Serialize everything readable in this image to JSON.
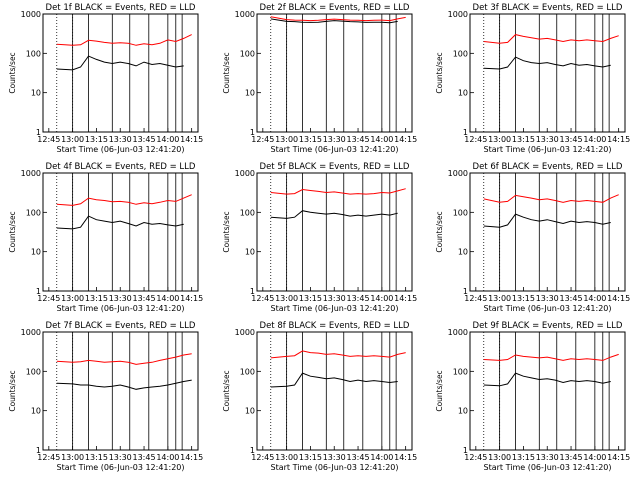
{
  "figure": {
    "tick_x_labels": [
      "12:45",
      "13:00",
      "13:15",
      "13:30",
      "13:45",
      "14:00",
      "14:15"
    ],
    "tick_y_labels": [
      "1",
      "10",
      "100",
      "1000"
    ],
    "colors": {
      "events": "#000000",
      "lld": "#ff0000",
      "axis": "#000000"
    }
  },
  "chart_data": [
    {
      "type": "line",
      "title": "Det 1f BLACK = Events, RED = LLD",
      "xlabel": "Start Time (06-Jun-03 12:41:20)",
      "ylabel": "Counts/sec",
      "ylim": [
        1,
        1000
      ],
      "yscale": "log",
      "xlim": [
        "12:41:20",
        "14:19:00"
      ],
      "x": [
        "12:50",
        "13:00",
        "13:05",
        "13:10",
        "13:15",
        "13:20",
        "13:25",
        "13:30",
        "13:35",
        "13:40",
        "13:45",
        "13:50",
        "13:55",
        "14:00",
        "14:05",
        "14:10",
        "14:15"
      ],
      "series": [
        {
          "name": "BLACK = Events",
          "color": "#000000",
          "values": [
            40,
            38,
            45,
            85,
            70,
            60,
            55,
            60,
            55,
            48,
            60,
            52,
            55,
            50,
            45,
            48,
            null
          ]
        },
        {
          "name": "RED = LLD",
          "color": "#ff0000",
          "values": [
            170,
            160,
            165,
            215,
            205,
            190,
            180,
            185,
            180,
            160,
            175,
            165,
            180,
            220,
            200,
            240,
            300
          ]
        }
      ]
    },
    {
      "type": "line",
      "title": "Det 2f BLACK = Events, RED = LLD",
      "xlabel": "Start Time (06-Jun-03 12:41:20)",
      "ylabel": "Counts/sec",
      "ylim": [
        1,
        1000
      ],
      "yscale": "log",
      "xlim": [
        "12:41:20",
        "14:19:00"
      ],
      "x": [
        "12:50",
        "13:00",
        "13:05",
        "13:10",
        "13:15",
        "13:20",
        "13:25",
        "13:30",
        "13:35",
        "13:40",
        "13:45",
        "13:50",
        "13:55",
        "14:00",
        "14:05",
        "14:10",
        "14:15"
      ],
      "series": [
        {
          "name": "BLACK = Events",
          "color": "#000000",
          "values": [
            750,
            650,
            640,
            620,
            610,
            620,
            650,
            680,
            660,
            640,
            630,
            610,
            620,
            620,
            600,
            650,
            null
          ]
        },
        {
          "name": "RED = LLD",
          "color": "#ff0000",
          "values": [
            850,
            720,
            700,
            690,
            680,
            690,
            720,
            740,
            720,
            700,
            690,
            680,
            690,
            700,
            680,
            750,
            820
          ]
        }
      ]
    },
    {
      "type": "line",
      "title": "Det 3f BLACK = Events, RED = LLD",
      "xlabel": "Start Time (06-Jun-03 12:41:20)",
      "ylabel": "Counts/sec",
      "ylim": [
        1,
        1000
      ],
      "yscale": "log",
      "xlim": [
        "12:41:20",
        "14:19:00"
      ],
      "x": [
        "12:50",
        "13:00",
        "13:05",
        "13:10",
        "13:15",
        "13:20",
        "13:25",
        "13:30",
        "13:35",
        "13:40",
        "13:45",
        "13:50",
        "13:55",
        "14:00",
        "14:05",
        "14:10",
        "14:15"
      ],
      "series": [
        {
          "name": "BLACK = Events",
          "color": "#000000",
          "values": [
            42,
            40,
            45,
            80,
            65,
            58,
            55,
            58,
            52,
            48,
            55,
            50,
            52,
            48,
            45,
            50,
            null
          ]
        },
        {
          "name": "RED = LLD",
          "color": "#ff0000",
          "values": [
            200,
            180,
            190,
            300,
            270,
            250,
            230,
            240,
            220,
            200,
            220,
            210,
            220,
            210,
            200,
            240,
            280
          ]
        }
      ]
    },
    {
      "type": "line",
      "title": "Det 4f BLACK = Events, RED = LLD",
      "xlabel": "Start Time (06-Jun-03 12:41:20)",
      "ylabel": "Counts/sec",
      "ylim": [
        1,
        1000
      ],
      "yscale": "log",
      "xlim": [
        "12:41:20",
        "14:19:00"
      ],
      "x": [
        "12:50",
        "13:00",
        "13:05",
        "13:10",
        "13:15",
        "13:20",
        "13:25",
        "13:30",
        "13:35",
        "13:40",
        "13:45",
        "13:50",
        "13:55",
        "14:00",
        "14:05",
        "14:10",
        "14:15"
      ],
      "series": [
        {
          "name": "BLACK = Events",
          "color": "#000000",
          "values": [
            40,
            38,
            42,
            80,
            65,
            60,
            55,
            60,
            52,
            45,
            55,
            50,
            52,
            48,
            45,
            50,
            null
          ]
        },
        {
          "name": "RED = LLD",
          "color": "#ff0000",
          "values": [
            160,
            150,
            165,
            230,
            210,
            200,
            185,
            190,
            180,
            160,
            175,
            165,
            180,
            200,
            190,
            230,
            280
          ]
        }
      ]
    },
    {
      "type": "line",
      "title": "Det 5f BLACK = Events, RED = LLD",
      "xlabel": "Start Time (06-Jun-03 12:41:20)",
      "ylabel": "Counts/sec",
      "ylim": [
        1,
        1000
      ],
      "yscale": "log",
      "xlim": [
        "12:41:20",
        "14:19:00"
      ],
      "x": [
        "12:50",
        "13:00",
        "13:05",
        "13:10",
        "13:15",
        "13:20",
        "13:25",
        "13:30",
        "13:35",
        "13:40",
        "13:45",
        "13:50",
        "13:55",
        "14:00",
        "14:05",
        "14:10",
        "14:15"
      ],
      "series": [
        {
          "name": "BLACK = Events",
          "color": "#000000",
          "values": [
            75,
            70,
            75,
            110,
            100,
            95,
            90,
            95,
            88,
            80,
            85,
            80,
            85,
            90,
            85,
            95,
            null
          ]
        },
        {
          "name": "RED = LLD",
          "color": "#ff0000",
          "values": [
            320,
            290,
            300,
            380,
            360,
            340,
            320,
            330,
            310,
            290,
            300,
            290,
            300,
            320,
            310,
            350,
            400
          ]
        }
      ]
    },
    {
      "type": "line",
      "title": "Det 6f BLACK = Events, RED = LLD",
      "xlabel": "Start Time (06-Jun-03 12:41:20)",
      "ylabel": "Counts/sec",
      "ylim": [
        1,
        1000
      ],
      "yscale": "log",
      "xlim": [
        "12:41:20",
        "14:19:00"
      ],
      "x": [
        "12:50",
        "13:00",
        "13:05",
        "13:10",
        "13:15",
        "13:20",
        "13:25",
        "13:30",
        "13:35",
        "13:40",
        "13:45",
        "13:50",
        "13:55",
        "14:00",
        "14:05",
        "14:10",
        "14:15"
      ],
      "series": [
        {
          "name": "BLACK = Events",
          "color": "#000000",
          "values": [
            45,
            42,
            48,
            90,
            75,
            65,
            60,
            65,
            58,
            52,
            60,
            55,
            58,
            55,
            50,
            55,
            null
          ]
        },
        {
          "name": "RED = LLD",
          "color": "#ff0000",
          "values": [
            220,
            180,
            190,
            270,
            250,
            230,
            210,
            220,
            200,
            180,
            200,
            190,
            200,
            190,
            180,
            230,
            280
          ]
        }
      ]
    },
    {
      "type": "line",
      "title": "Det 7f BLACK = Events, RED = LLD",
      "xlabel": "Start Time (06-Jun-03 12:41:20)",
      "ylabel": "Counts/sec",
      "ylim": [
        1,
        1000
      ],
      "yscale": "log",
      "xlim": [
        "12:41:20",
        "14:19:00"
      ],
      "x": [
        "12:50",
        "13:00",
        "13:05",
        "13:10",
        "13:15",
        "13:20",
        "13:25",
        "13:30",
        "13:35",
        "13:40",
        "13:45",
        "13:50",
        "13:55",
        "14:00",
        "14:05",
        "14:10",
        "14:15"
      ],
      "series": [
        {
          "name": "BLACK = Events",
          "color": "#000000",
          "values": [
            50,
            48,
            45,
            45,
            42,
            40,
            42,
            45,
            40,
            35,
            38,
            40,
            42,
            45,
            50,
            55,
            60
          ]
        },
        {
          "name": "RED = LLD",
          "color": "#ff0000",
          "values": [
            180,
            170,
            175,
            190,
            180,
            170,
            175,
            180,
            170,
            150,
            160,
            170,
            190,
            210,
            230,
            260,
            280
          ]
        }
      ]
    },
    {
      "type": "line",
      "title": "Det 8f BLACK = Events, RED = LLD",
      "xlabel": "Start Time (06-Jun-03 12:41:20)",
      "ylabel": "Counts/sec",
      "ylim": [
        1,
        1000
      ],
      "yscale": "log",
      "xlim": [
        "12:41:20",
        "14:19:00"
      ],
      "x": [
        "12:50",
        "13:00",
        "13:05",
        "13:10",
        "13:15",
        "13:20",
        "13:25",
        "13:30",
        "13:35",
        "13:40",
        "13:45",
        "13:50",
        "13:55",
        "14:00",
        "14:05",
        "14:10",
        "14:15"
      ],
      "series": [
        {
          "name": "BLACK = Events",
          "color": "#000000",
          "values": [
            40,
            42,
            45,
            90,
            75,
            70,
            65,
            68,
            62,
            55,
            60,
            55,
            58,
            55,
            52,
            55,
            null
          ]
        },
        {
          "name": "RED = LLD",
          "color": "#ff0000",
          "values": [
            220,
            240,
            250,
            330,
            300,
            290,
            270,
            280,
            260,
            240,
            250,
            240,
            250,
            240,
            230,
            270,
            300
          ]
        }
      ]
    },
    {
      "type": "line",
      "title": "Det 9f BLACK = Events, RED = LLD",
      "xlabel": "Start Time (06-Jun-03 12:41:20)",
      "ylabel": "Counts/sec",
      "ylim": [
        1,
        1000
      ],
      "yscale": "log",
      "xlim": [
        "12:41:20",
        "14:19:00"
      ],
      "x": [
        "12:50",
        "13:00",
        "13:05",
        "13:10",
        "13:15",
        "13:20",
        "13:25",
        "13:30",
        "13:35",
        "13:40",
        "13:45",
        "13:50",
        "13:55",
        "14:00",
        "14:05",
        "14:10",
        "14:15"
      ],
      "series": [
        {
          "name": "BLACK = Events",
          "color": "#000000",
          "values": [
            45,
            43,
            48,
            90,
            75,
            68,
            62,
            65,
            60,
            52,
            58,
            55,
            58,
            55,
            50,
            55,
            null
          ]
        },
        {
          "name": "RED = LLD",
          "color": "#ff0000",
          "values": [
            200,
            190,
            200,
            260,
            240,
            230,
            220,
            230,
            210,
            190,
            210,
            200,
            210,
            200,
            190,
            230,
            270
          ]
        }
      ]
    }
  ]
}
